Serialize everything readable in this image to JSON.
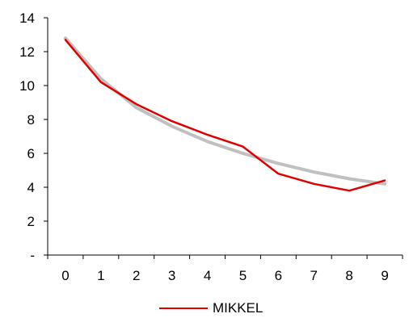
{
  "chart_data": {
    "type": "line",
    "title": "",
    "xlabel": "",
    "ylabel": "",
    "categories": [
      "0",
      "1",
      "2",
      "3",
      "4",
      "5",
      "6",
      "7",
      "8",
      "9"
    ],
    "y_tick_labels": [
      "-",
      "2",
      "4",
      "6",
      "8",
      "10",
      "12",
      "14"
    ],
    "ylim": [
      0,
      14
    ],
    "grid": false,
    "legend_position": "bottom",
    "series": [
      {
        "name": "MIKKEL",
        "color": "#e00000",
        "in_legend": true,
        "values": [
          12.7,
          10.2,
          8.9,
          7.9,
          7.1,
          6.4,
          4.8,
          4.2,
          3.8,
          4.4
        ]
      },
      {
        "name": "",
        "color": "#c0c0c0",
        "in_legend": false,
        "values": [
          12.8,
          10.4,
          8.7,
          7.6,
          6.7,
          6.0,
          5.4,
          4.9,
          4.5,
          4.2
        ]
      }
    ]
  }
}
